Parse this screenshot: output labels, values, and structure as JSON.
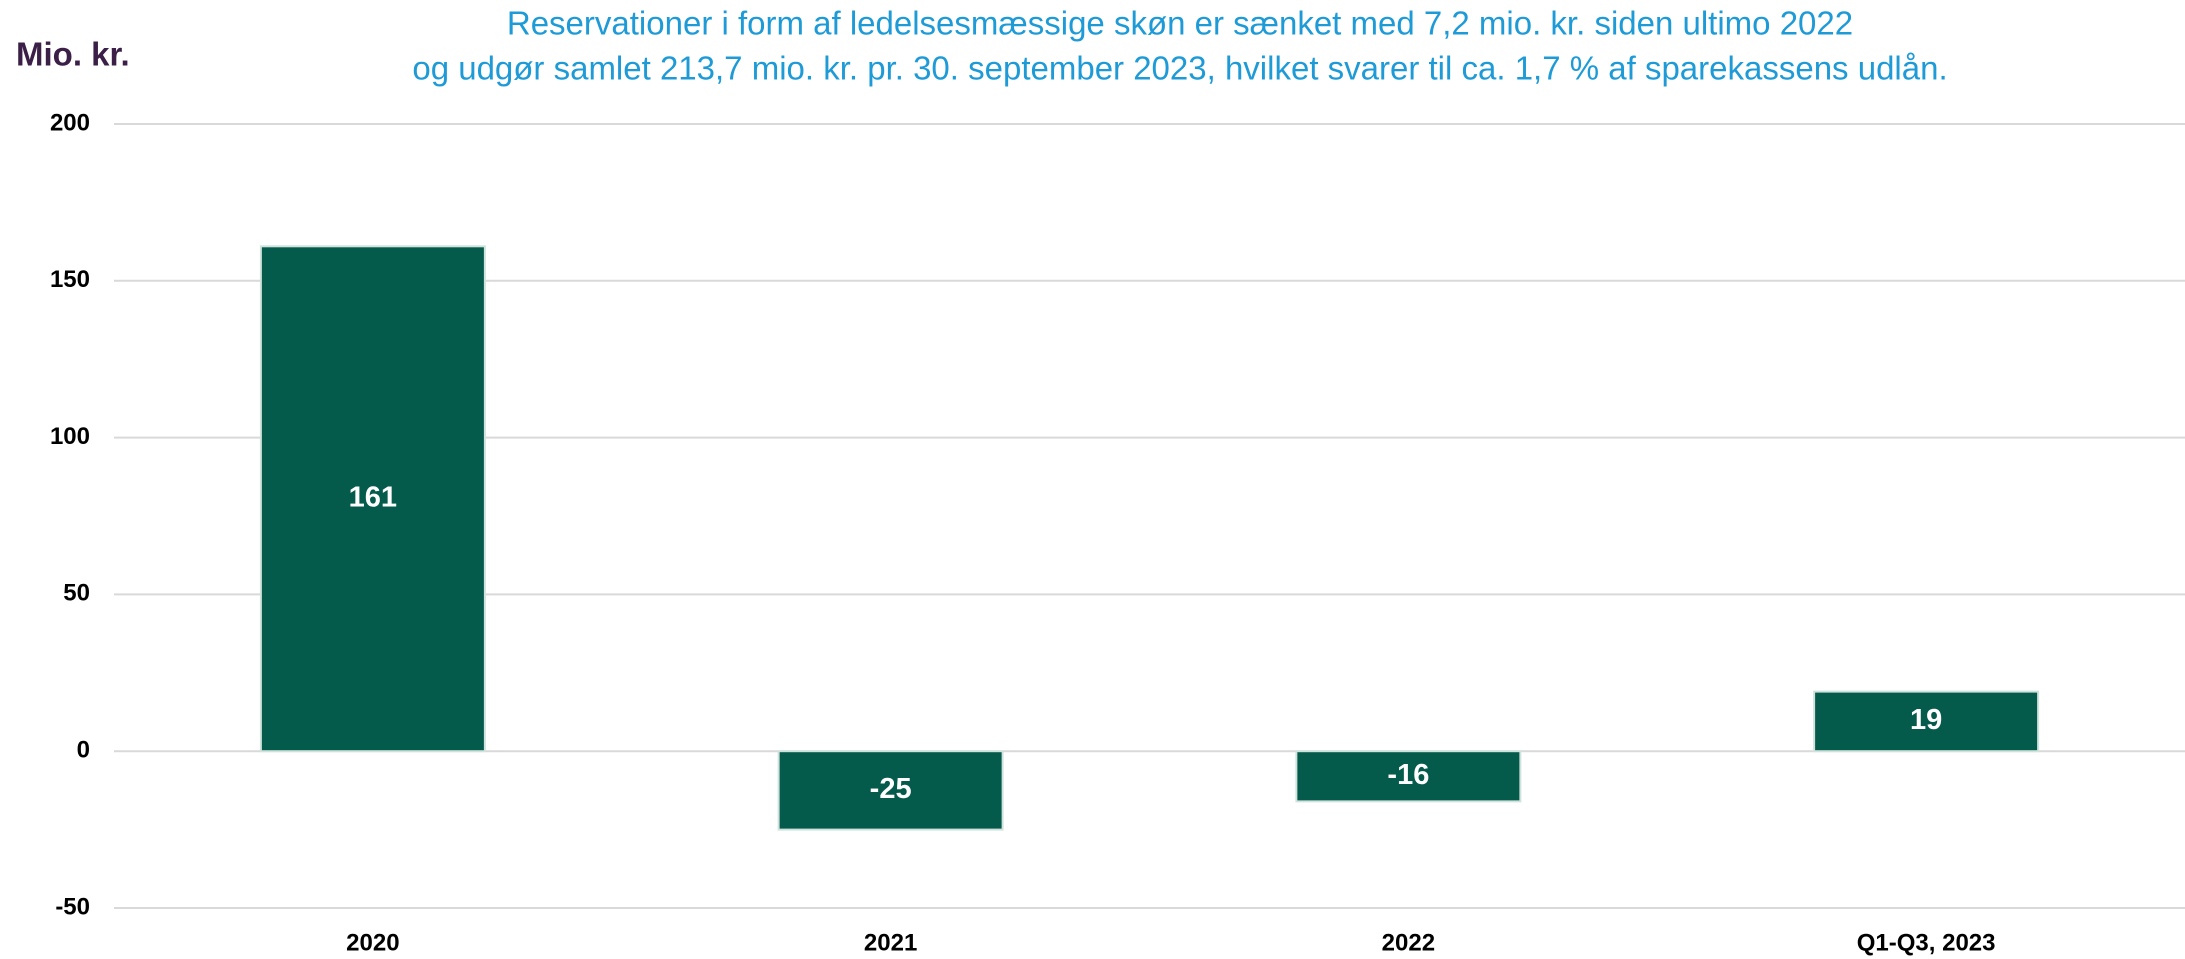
{
  "chart_data": {
    "type": "bar",
    "title": [
      "Reservationer i form af ledelsesmæssige skøn er sænket med 7,2 mio. kr. siden ultimo 2022",
      "og udgør samlet 213,7 mio. kr. pr. 30. september 2023, hvilket svarer til ca. 1,7 % af sparekassens udlån."
    ],
    "ylabel": "Mio. kr.",
    "categories": [
      "2020",
      "2021",
      "2022",
      "Q1-Q3, 2023"
    ],
    "values": [
      161,
      -25,
      -16,
      19
    ],
    "color": "#045a4b",
    "ylim": [
      -50,
      200
    ],
    "yticks": [
      -50,
      0,
      50,
      100,
      150,
      200
    ],
    "grid": true
  }
}
